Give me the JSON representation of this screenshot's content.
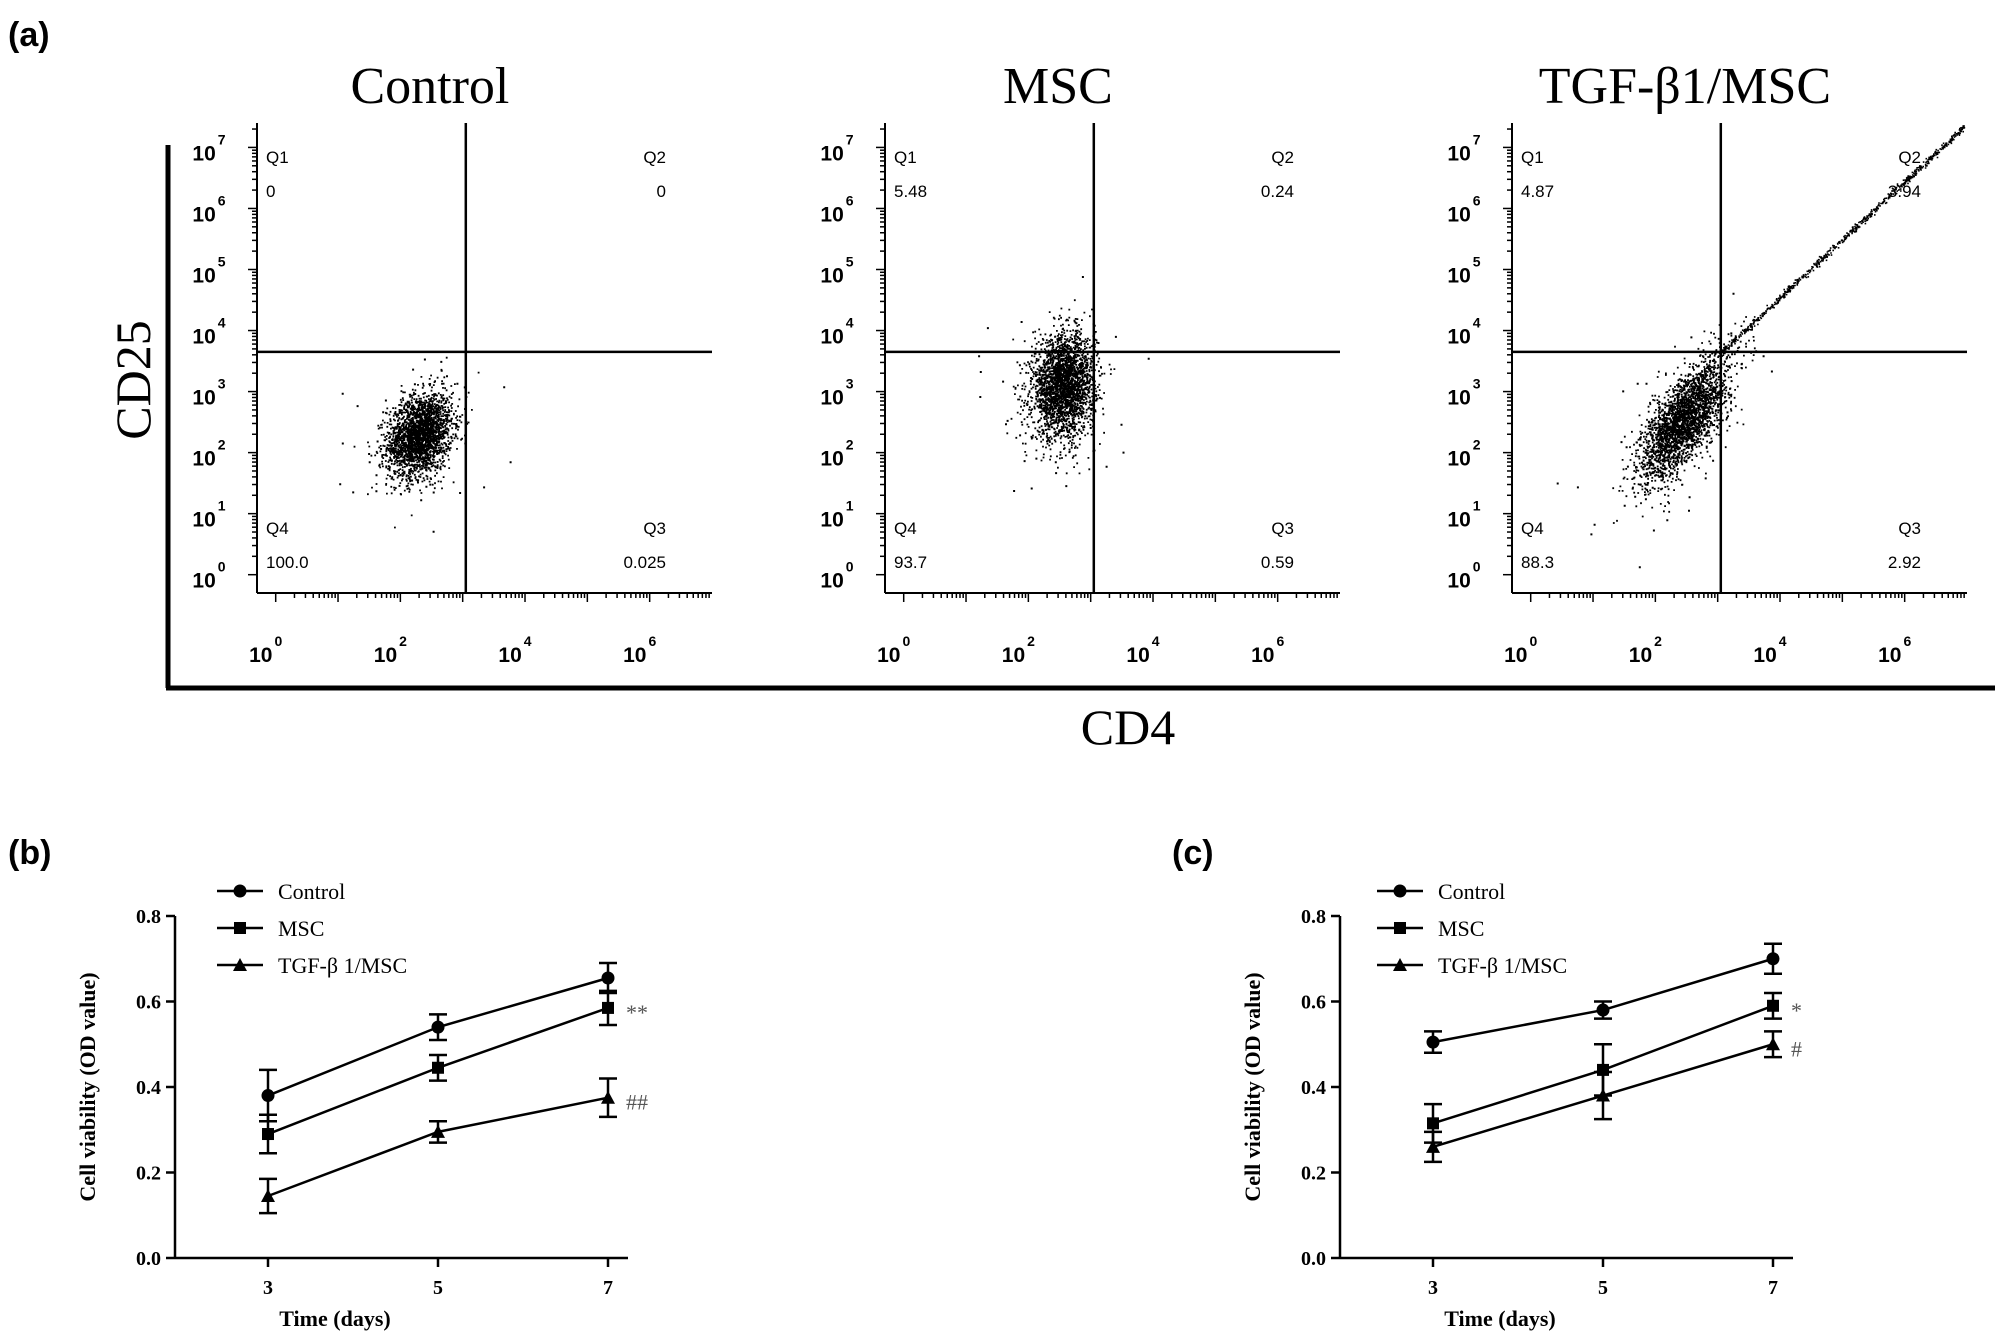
{
  "panel_labels": {
    "a": "(a)",
    "b": "(b)",
    "c": "(c)"
  },
  "chart_data": [
    {
      "type": "scatter",
      "panel": "(a)",
      "shared_ylabel": "CD25",
      "shared_xlabel": "CD4",
      "axis_scale": "log10",
      "x_ticks": [
        {
          "base": "10",
          "exp": "0",
          "value": 0
        },
        {
          "base": "10",
          "exp": "2",
          "value": 2
        },
        {
          "base": "10",
          "exp": "4",
          "value": 4
        },
        {
          "base": "10",
          "exp": "6",
          "value": 6
        }
      ],
      "y_ticks": [
        {
          "base": "10",
          "exp": "0",
          "value": 0
        },
        {
          "base": "10",
          "exp": "1",
          "value": 1
        },
        {
          "base": "10",
          "exp": "2",
          "value": 2
        },
        {
          "base": "10",
          "exp": "3",
          "value": 3
        },
        {
          "base": "10",
          "exp": "4",
          "value": 4
        },
        {
          "base": "10",
          "exp": "5",
          "value": 5
        },
        {
          "base": "10",
          "exp": "6",
          "value": 6
        },
        {
          "base": "10",
          "exp": "7",
          "value": 7
        }
      ],
      "xlim_log": [
        -0.3,
        7
      ],
      "ylim_log": [
        -0.3,
        7.4
      ],
      "quadrant_gate_log": {
        "x": 3.05,
        "y": 3.65
      },
      "plots": [
        {
          "title": "Control",
          "quadrants": {
            "Q1": "0",
            "Q2": "0",
            "Q3": "0.025",
            "Q4": "100.0"
          },
          "Q_labels": [
            "Q1",
            "Q2",
            "Q3",
            "Q4"
          ],
          "population": {
            "cx_log": 2.3,
            "cy_log": 2.3,
            "sx": 0.26,
            "sy": 0.34,
            "n": 2400,
            "corr": 0.25,
            "diagonal": false
          }
        },
        {
          "title": "MSC",
          "quadrants": {
            "Q1": "5.48",
            "Q2": "0.24",
            "Q3": "0.59",
            "Q4": "93.7"
          },
          "Q_labels": [
            "Q1",
            "Q2",
            "Q3",
            "Q4"
          ],
          "population": {
            "cx_log": 2.55,
            "cy_log": 3.1,
            "sx": 0.25,
            "sy": 0.42,
            "n": 2600,
            "corr": 0.1,
            "diagonal": false
          }
        },
        {
          "title": "TGF-β1/MSC",
          "quadrants": {
            "Q1": "4.87",
            "Q2": "3.94",
            "Q3": "2.92",
            "Q4": "88.3"
          },
          "Q_labels": [
            "Q1",
            "Q2",
            "Q3",
            "Q4"
          ],
          "population": {
            "cx_log": 2.45,
            "cy_log": 2.55,
            "sx": 0.35,
            "sy": 0.5,
            "n": 2600,
            "corr": 0.7,
            "diagonal": true
          }
        }
      ]
    },
    {
      "type": "line",
      "panel": "(b)",
      "xlabel": "Time (days)",
      "ylabel": "Cell viability (OD value)",
      "x": [
        3,
        5,
        7
      ],
      "x_tick_labels": [
        "3",
        "5",
        "7"
      ],
      "ylim": [
        0.0,
        0.8
      ],
      "y_ticks": [
        "0.0",
        "0.2",
        "0.4",
        "0.6",
        "0.8"
      ],
      "series": [
        {
          "name": "Control",
          "marker": "circle",
          "values": [
            0.38,
            0.54,
            0.655
          ],
          "errors": [
            0.06,
            0.03,
            0.035
          ]
        },
        {
          "name": "MSC",
          "marker": "square",
          "values": [
            0.29,
            0.445,
            0.585
          ],
          "errors": [
            0.045,
            0.03,
            0.04
          ]
        },
        {
          "name": "TGF-β 1/MSC",
          "marker": "triangle",
          "values": [
            0.145,
            0.295,
            0.375
          ],
          "errors": [
            0.04,
            0.025,
            0.045
          ]
        }
      ],
      "annotations": [
        {
          "text": "**",
          "series": "MSC",
          "x": 7
        },
        {
          "text": "##",
          "series": "TGF-β 1/MSC",
          "x": 7
        }
      ]
    },
    {
      "type": "line",
      "panel": "(c)",
      "xlabel": "Time (days)",
      "ylabel": "Cell viability (OD value)",
      "x": [
        3,
        5,
        7
      ],
      "x_tick_labels": [
        "3",
        "5",
        "7"
      ],
      "ylim": [
        0.0,
        0.8
      ],
      "y_ticks": [
        "0.0",
        "0.2",
        "0.4",
        "0.6",
        "0.8"
      ],
      "series": [
        {
          "name": "Control",
          "marker": "circle",
          "values": [
            0.505,
            0.58,
            0.7
          ],
          "errors": [
            0.025,
            0.02,
            0.035
          ]
        },
        {
          "name": "MSC",
          "marker": "square",
          "values": [
            0.315,
            0.44,
            0.59
          ],
          "errors": [
            0.045,
            0.06,
            0.03
          ]
        },
        {
          "name": "TGF-β 1/MSC",
          "marker": "triangle",
          "values": [
            0.26,
            0.38,
            0.5
          ],
          "errors": [
            0.035,
            0.055,
            0.03
          ]
        }
      ],
      "annotations": [
        {
          "text": "*",
          "series": "MSC",
          "x": 7
        },
        {
          "text": "#",
          "series": "TGF-β 1/MSC",
          "x": 7
        }
      ]
    }
  ]
}
